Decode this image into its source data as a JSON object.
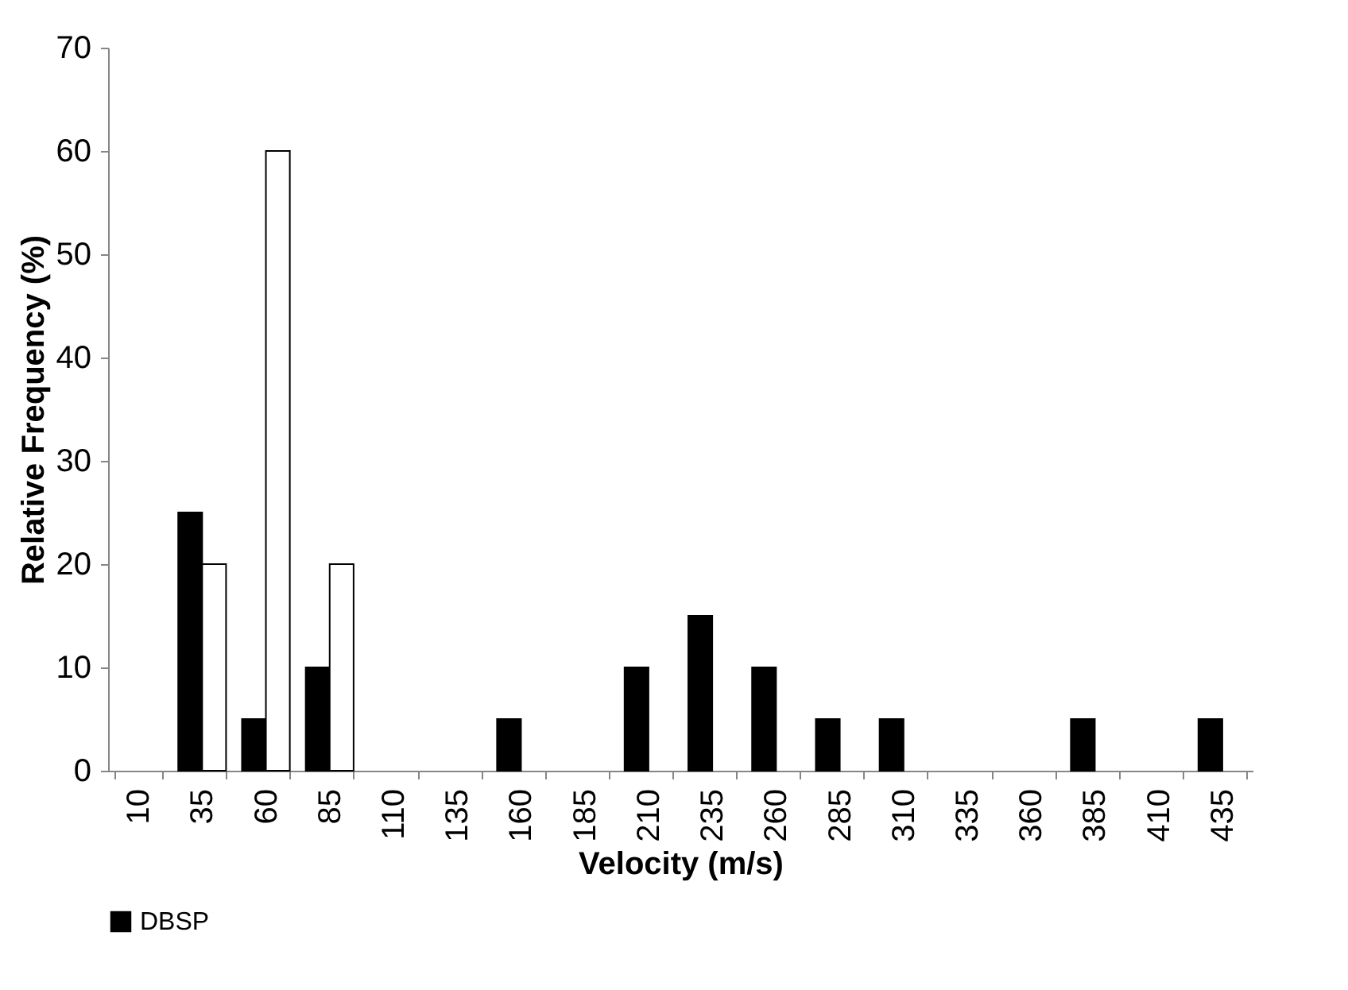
{
  "chart_data": {
    "type": "bar",
    "xlabel": "Velocity (m/s)",
    "ylabel": "Relative Frequency (%)",
    "categories": [
      "10",
      "35",
      "60",
      "85",
      "110",
      "135",
      "160",
      "185",
      "210",
      "235",
      "260",
      "285",
      "310",
      "335",
      "360",
      "385",
      "410",
      "435"
    ],
    "series": [
      {
        "name": "DBSP",
        "color": "#000000",
        "values": [
          0,
          25,
          5,
          10,
          0,
          0,
          5,
          0,
          10,
          15,
          10,
          5,
          5,
          0,
          0,
          5,
          0,
          5
        ]
      },
      {
        "color": "#ffffff",
        "values": [
          0,
          20,
          60,
          20,
          0,
          0,
          0,
          0,
          0,
          0,
          0,
          0,
          0,
          0,
          0,
          0,
          0,
          0
        ]
      }
    ],
    "ylim": [
      0,
      70
    ],
    "yticks": [
      0,
      10,
      20,
      30,
      40,
      50,
      60,
      70
    ],
    "grid": false,
    "legend": "bottom"
  }
}
